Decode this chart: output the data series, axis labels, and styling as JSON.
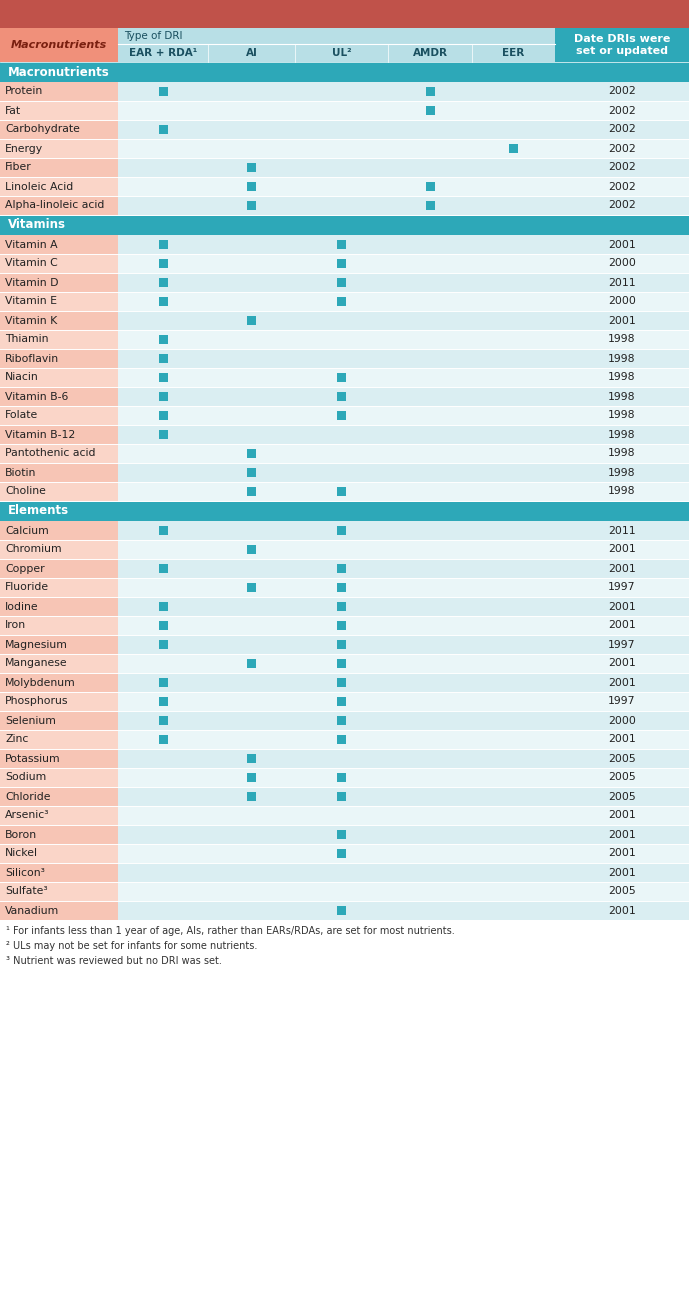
{
  "header_color_top": "#c0524a",
  "header_left_color": "#f0907a",
  "header_mid_color": "#b8dfe6",
  "header_right_color": "#2da8b8",
  "section_bar_color": "#2da8b8",
  "odd_row_color": "#daeef2",
  "even_row_color": "#eaf6f8",
  "left_col_odd": "#f7c5b5",
  "left_col_even": "#fad5c8",
  "marker_color": "#2da8b8",
  "date_col_color": "#eaf6f8",
  "col_header_text": [
    "EAR + RDA¹",
    "AI",
    "UL²",
    "AMDR",
    "EER"
  ],
  "footnotes": [
    "¹ For infants less than 1 year of age, AIs, rather than EARs/RDAs, are set for most nutrients.",
    "² ULs may not be set for infants for some nutrients.",
    "³ Nutrient was reviewed but no DRI was set."
  ],
  "sections": [
    {
      "name": "Macronutrients",
      "rows": [
        {
          "nutrient": "Protein",
          "EAR": 1,
          "AI": 0,
          "UL": 0,
          "AMDR": 1,
          "EER": 0,
          "year": "2002"
        },
        {
          "nutrient": "Fat",
          "EAR": 0,
          "AI": 0,
          "UL": 0,
          "AMDR": 1,
          "EER": 0,
          "year": "2002"
        },
        {
          "nutrient": "Carbohydrate",
          "EAR": 1,
          "AI": 0,
          "UL": 0,
          "AMDR": 0,
          "EER": 0,
          "year": "2002"
        },
        {
          "nutrient": "Energy",
          "EAR": 0,
          "AI": 0,
          "UL": 0,
          "AMDR": 0,
          "EER": 1,
          "year": "2002"
        },
        {
          "nutrient": "Fiber",
          "EAR": 0,
          "AI": 1,
          "UL": 0,
          "AMDR": 0,
          "EER": 0,
          "year": "2002"
        },
        {
          "nutrient": "Linoleic Acid",
          "EAR": 0,
          "AI": 1,
          "UL": 0,
          "AMDR": 1,
          "EER": 0,
          "year": "2002"
        },
        {
          "nutrient": "Alpha-linoleic acid",
          "EAR": 0,
          "AI": 1,
          "UL": 0,
          "AMDR": 1,
          "EER": 0,
          "year": "2002"
        }
      ]
    },
    {
      "name": "Vitamins",
      "rows": [
        {
          "nutrient": "Vitamin A",
          "EAR": 1,
          "AI": 0,
          "UL": 1,
          "AMDR": 0,
          "EER": 0,
          "year": "2001"
        },
        {
          "nutrient": "Vitamin C",
          "EAR": 1,
          "AI": 0,
          "UL": 1,
          "AMDR": 0,
          "EER": 0,
          "year": "2000"
        },
        {
          "nutrient": "Vitamin D",
          "EAR": 1,
          "AI": 0,
          "UL": 1,
          "AMDR": 0,
          "EER": 0,
          "year": "2011"
        },
        {
          "nutrient": "Vitamin E",
          "EAR": 1,
          "AI": 0,
          "UL": 1,
          "AMDR": 0,
          "EER": 0,
          "year": "2000"
        },
        {
          "nutrient": "Vitamin K",
          "EAR": 0,
          "AI": 1,
          "UL": 0,
          "AMDR": 0,
          "EER": 0,
          "year": "2001"
        },
        {
          "nutrient": "Thiamin",
          "EAR": 1,
          "AI": 0,
          "UL": 0,
          "AMDR": 0,
          "EER": 0,
          "year": "1998"
        },
        {
          "nutrient": "Riboflavin",
          "EAR": 1,
          "AI": 0,
          "UL": 0,
          "AMDR": 0,
          "EER": 0,
          "year": "1998"
        },
        {
          "nutrient": "Niacin",
          "EAR": 1,
          "AI": 0,
          "UL": 1,
          "AMDR": 0,
          "EER": 0,
          "year": "1998"
        },
        {
          "nutrient": "Vitamin B-6",
          "EAR": 1,
          "AI": 0,
          "UL": 1,
          "AMDR": 0,
          "EER": 0,
          "year": "1998"
        },
        {
          "nutrient": "Folate",
          "EAR": 1,
          "AI": 0,
          "UL": 1,
          "AMDR": 0,
          "EER": 0,
          "year": "1998"
        },
        {
          "nutrient": "Vitamin B-12",
          "EAR": 1,
          "AI": 0,
          "UL": 0,
          "AMDR": 0,
          "EER": 0,
          "year": "1998"
        },
        {
          "nutrient": "Pantothenic acid",
          "EAR": 0,
          "AI": 1,
          "UL": 0,
          "AMDR": 0,
          "EER": 0,
          "year": "1998"
        },
        {
          "nutrient": "Biotin",
          "EAR": 0,
          "AI": 1,
          "UL": 0,
          "AMDR": 0,
          "EER": 0,
          "year": "1998"
        },
        {
          "nutrient": "Choline",
          "EAR": 0,
          "AI": 1,
          "UL": 1,
          "AMDR": 0,
          "EER": 0,
          "year": "1998"
        }
      ]
    },
    {
      "name": "Elements",
      "rows": [
        {
          "nutrient": "Calcium",
          "EAR": 1,
          "AI": 0,
          "UL": 1,
          "AMDR": 0,
          "EER": 0,
          "year": "2011"
        },
        {
          "nutrient": "Chromium",
          "EAR": 0,
          "AI": 1,
          "UL": 0,
          "AMDR": 0,
          "EER": 0,
          "year": "2001"
        },
        {
          "nutrient": "Copper",
          "EAR": 1,
          "AI": 0,
          "UL": 1,
          "AMDR": 0,
          "EER": 0,
          "year": "2001"
        },
        {
          "nutrient": "Fluoride",
          "EAR": 0,
          "AI": 1,
          "UL": 1,
          "AMDR": 0,
          "EER": 0,
          "year": "1997"
        },
        {
          "nutrient": "Iodine",
          "EAR": 1,
          "AI": 0,
          "UL": 1,
          "AMDR": 0,
          "EER": 0,
          "year": "2001"
        },
        {
          "nutrient": "Iron",
          "EAR": 1,
          "AI": 0,
          "UL": 1,
          "AMDR": 0,
          "EER": 0,
          "year": "2001"
        },
        {
          "nutrient": "Magnesium",
          "EAR": 1,
          "AI": 0,
          "UL": 1,
          "AMDR": 0,
          "EER": 0,
          "year": "1997"
        },
        {
          "nutrient": "Manganese",
          "EAR": 0,
          "AI": 1,
          "UL": 1,
          "AMDR": 0,
          "EER": 0,
          "year": "2001"
        },
        {
          "nutrient": "Molybdenum",
          "EAR": 1,
          "AI": 0,
          "UL": 1,
          "AMDR": 0,
          "EER": 0,
          "year": "2001"
        },
        {
          "nutrient": "Phosphorus",
          "EAR": 1,
          "AI": 0,
          "UL": 1,
          "AMDR": 0,
          "EER": 0,
          "year": "1997"
        },
        {
          "nutrient": "Selenium",
          "EAR": 1,
          "AI": 0,
          "UL": 1,
          "AMDR": 0,
          "EER": 0,
          "year": "2000"
        },
        {
          "nutrient": "Zinc",
          "EAR": 1,
          "AI": 0,
          "UL": 1,
          "AMDR": 0,
          "EER": 0,
          "year": "2001"
        },
        {
          "nutrient": "Potassium",
          "EAR": 0,
          "AI": 1,
          "UL": 0,
          "AMDR": 0,
          "EER": 0,
          "year": "2005"
        },
        {
          "nutrient": "Sodium",
          "EAR": 0,
          "AI": 1,
          "UL": 1,
          "AMDR": 0,
          "EER": 0,
          "year": "2005"
        },
        {
          "nutrient": "Chloride",
          "EAR": 0,
          "AI": 1,
          "UL": 1,
          "AMDR": 0,
          "EER": 0,
          "year": "2005"
        },
        {
          "nutrient": "Arsenic³",
          "EAR": 0,
          "AI": 0,
          "UL": 0,
          "AMDR": 0,
          "EER": 0,
          "year": "2001"
        },
        {
          "nutrient": "Boron",
          "EAR": 0,
          "AI": 0,
          "UL": 1,
          "AMDR": 0,
          "EER": 0,
          "year": "2001"
        },
        {
          "nutrient": "Nickel",
          "EAR": 0,
          "AI": 0,
          "UL": 1,
          "AMDR": 0,
          "EER": 0,
          "year": "2001"
        },
        {
          "nutrient": "Silicon³",
          "EAR": 0,
          "AI": 0,
          "UL": 0,
          "AMDR": 0,
          "EER": 0,
          "year": "2001"
        },
        {
          "nutrient": "Sulfate³",
          "EAR": 0,
          "AI": 0,
          "UL": 0,
          "AMDR": 0,
          "EER": 0,
          "year": "2005"
        },
        {
          "nutrient": "Vanadium",
          "EAR": 0,
          "AI": 0,
          "UL": 1,
          "AMDR": 0,
          "EER": 0,
          "year": "2001"
        }
      ]
    }
  ]
}
